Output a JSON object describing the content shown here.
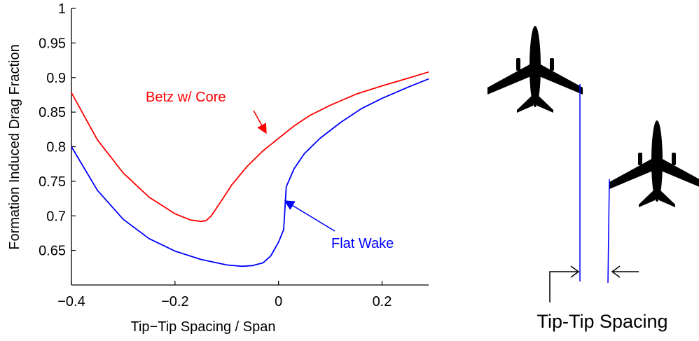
{
  "chart_data": {
    "type": "line",
    "xlabel": "Tip−Tip Spacing / Span",
    "ylabel": "Formation Induced Drag Fraction",
    "xlim": [
      -0.4,
      0.29
    ],
    "ylim": [
      0.6,
      1.0
    ],
    "xticks": [
      -0.4,
      -0.2,
      0,
      0.2
    ],
    "xtick_labels": [
      "−0.4",
      "−0.2",
      "0",
      "0.2"
    ],
    "yticks": [
      0.65,
      0.7,
      0.75,
      0.8,
      0.85,
      0.9,
      0.95,
      1
    ],
    "ytick_labels": [
      "0.65",
      "0.7",
      "0.75",
      "0.8",
      "0.85",
      "0.9",
      "0.95",
      "1"
    ],
    "grid": false,
    "series": [
      {
        "name": "Betz w/ Core",
        "color": "#ff0000",
        "x": [
          -0.4,
          -0.35,
          -0.3,
          -0.25,
          -0.2,
          -0.17,
          -0.15,
          -0.14,
          -0.13,
          -0.11,
          -0.09,
          -0.06,
          -0.03,
          0.0,
          0.03,
          0.06,
          0.1,
          0.15,
          0.2,
          0.25,
          0.29
        ],
        "y": [
          0.878,
          0.81,
          0.762,
          0.727,
          0.703,
          0.694,
          0.692,
          0.693,
          0.7,
          0.722,
          0.745,
          0.772,
          0.794,
          0.812,
          0.83,
          0.845,
          0.86,
          0.876,
          0.888,
          0.899,
          0.908
        ]
      },
      {
        "name": "Flat Wake",
        "color": "#0000ff",
        "x": [
          -0.4,
          -0.35,
          -0.3,
          -0.25,
          -0.2,
          -0.15,
          -0.1,
          -0.07,
          -0.05,
          -0.03,
          -0.015,
          0.0,
          0.01,
          0.015,
          0.03,
          0.05,
          0.08,
          0.12,
          0.16,
          0.2,
          0.25,
          0.29
        ],
        "y": [
          0.8,
          0.737,
          0.695,
          0.667,
          0.649,
          0.637,
          0.629,
          0.627,
          0.628,
          0.632,
          0.642,
          0.662,
          0.68,
          0.742,
          0.768,
          0.79,
          0.812,
          0.835,
          0.855,
          0.87,
          0.886,
          0.898
        ]
      }
    ],
    "annotations": [
      {
        "text": "Betz w/ Core",
        "color": "#ff0000"
      },
      {
        "text": "Flat Wake",
        "color": "#0000ff"
      }
    ]
  },
  "diagram": {
    "label": "Tip-Tip Spacing",
    "icons": [
      "aircraft-icon",
      "aircraft-icon"
    ],
    "line_color": "#0000ff"
  }
}
